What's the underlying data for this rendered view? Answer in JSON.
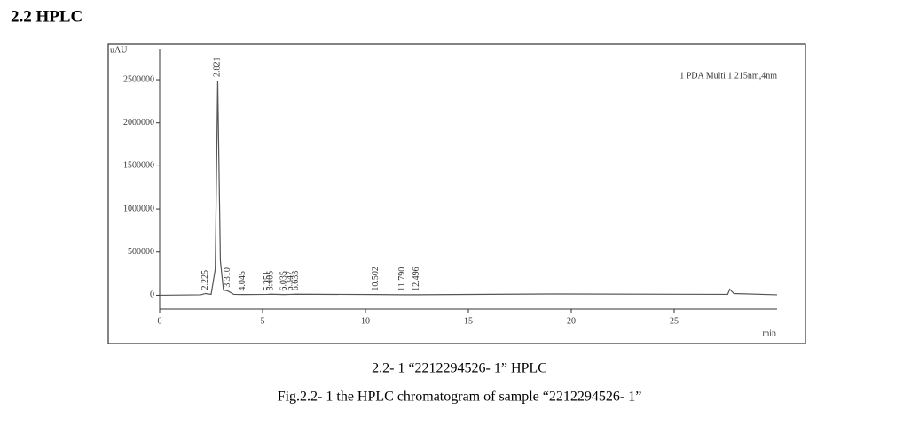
{
  "heading": "2.2  HPLC",
  "chart_data": {
    "type": "line",
    "y_unit": "uAU",
    "x_unit": "min",
    "annotation": "1 PDA Multi 1 215nm,4nm",
    "x": [
      0,
      2.0,
      2.225,
      2.5,
      2.7,
      2.821,
      2.95,
      3.1,
      3.31,
      3.6,
      4.045,
      5.251,
      5.405,
      6.035,
      6.347,
      6.633,
      10.502,
      11.79,
      12.496,
      19,
      27.6,
      27.7,
      27.9,
      30
    ],
    "series": [
      {
        "name": "1 PDA Multi 1",
        "color": "#555555",
        "values": [
          0,
          5000,
          20000,
          10000,
          300000,
          2490000,
          400000,
          60000,
          50000,
          10000,
          8000,
          10000,
          12000,
          8000,
          10000,
          12000,
          8000,
          6000,
          6000,
          15000,
          10000,
          70000,
          20000,
          5000
        ]
      }
    ],
    "peaks": {
      "x": [
        2.225,
        2.821,
        3.31,
        4.045,
        5.251,
        5.405,
        6.035,
        6.347,
        6.633,
        10.502,
        11.79,
        12.496
      ],
      "value_labels": [
        "2.225",
        "2.821",
        "3.310",
        "4.045",
        "5.251",
        "5.405",
        "6.035",
        "6.347",
        "6.633",
        "10.502",
        "11.790",
        "12.496"
      ]
    },
    "xlim": [
      0,
      30
    ],
    "ylim": [
      -160000,
      2860000
    ],
    "xticks": [
      0,
      5,
      10,
      15,
      20,
      25
    ],
    "yticks": [
      0,
      500000,
      1000000,
      1500000,
      2000000,
      2500000
    ]
  },
  "caption": {
    "line1": "2.2- 1 “2212294526- 1” HPLC",
    "line2": "Fig.2.2- 1 the HPLC chromatogram of sample “2212294526- 1”"
  }
}
